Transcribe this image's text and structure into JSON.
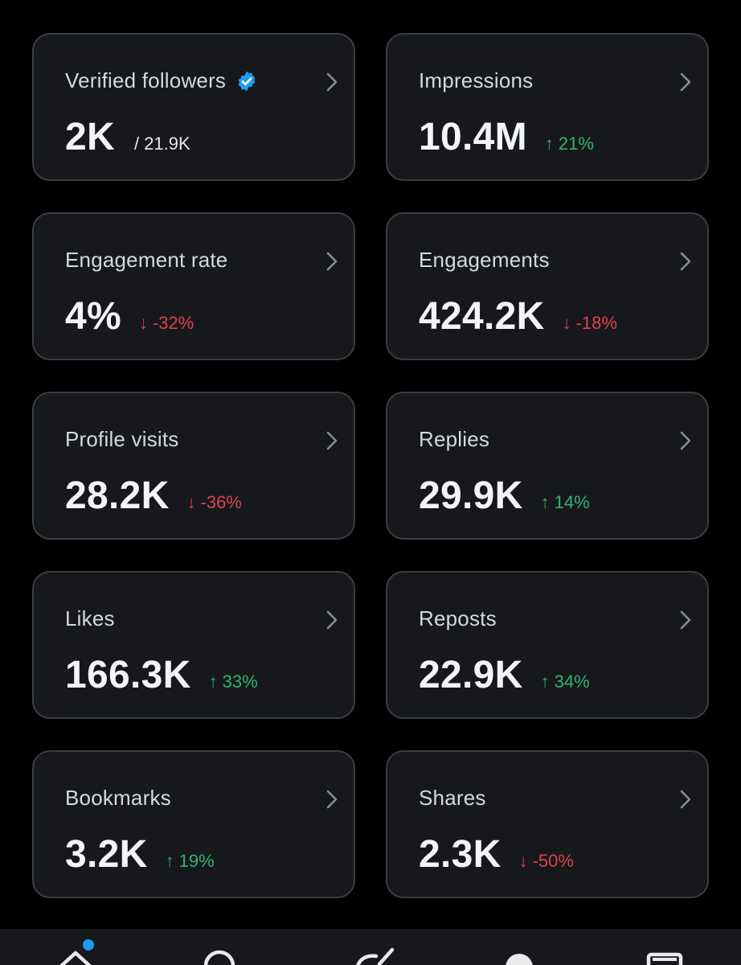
{
  "colors": {
    "background": "#000000",
    "card_background": "#16181c",
    "card_border": "#3a3d42",
    "positive": "#2fb56f",
    "negative": "#e0414f",
    "verified_blue": "#1d9bf0"
  },
  "metrics": [
    {
      "title": "Verified followers",
      "value": "2K",
      "total": "/ 21.9K",
      "verified": true
    },
    {
      "title": "Impressions",
      "value": "10.4M",
      "delta": "21%",
      "direction": "up",
      "arrow": "↑"
    },
    {
      "title": "Engagement rate",
      "value": "4%",
      "delta": "-32%",
      "direction": "down",
      "arrow": "↓"
    },
    {
      "title": "Engagements",
      "value": "424.2K",
      "delta": "-18%",
      "direction": "down",
      "arrow": "↓"
    },
    {
      "title": "Profile visits",
      "value": "28.2K",
      "delta": "-36%",
      "direction": "down",
      "arrow": "↓"
    },
    {
      "title": "Replies",
      "value": "29.9K",
      "delta": "14%",
      "direction": "up",
      "arrow": "↑"
    },
    {
      "title": "Likes",
      "value": "166.3K",
      "delta": "33%",
      "direction": "up",
      "arrow": "↑"
    },
    {
      "title": "Reposts",
      "value": "22.9K",
      "delta": "34%",
      "direction": "up",
      "arrow": "↑"
    },
    {
      "title": "Bookmarks",
      "value": "3.2K",
      "delta": "19%",
      "direction": "up",
      "arrow": "↑"
    },
    {
      "title": "Shares",
      "value": "2.3K",
      "delta": "-50%",
      "direction": "down",
      "arrow": "↓"
    }
  ],
  "nav": {
    "icons": [
      "home-icon",
      "search-icon",
      "grok-icon",
      "profile-icon",
      "messages-icon"
    ],
    "home_has_notification": true
  }
}
